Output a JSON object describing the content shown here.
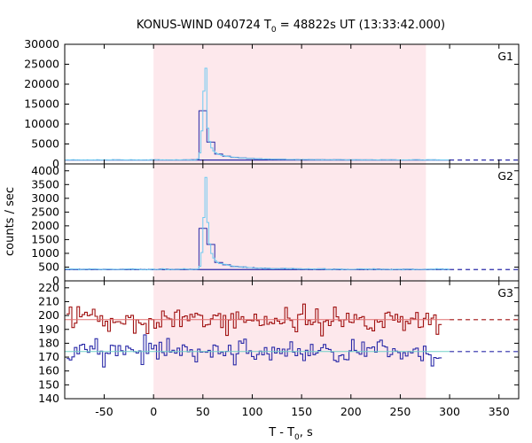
{
  "chart_data": {
    "type": "line",
    "title_main": "KONUS-WIND 040724 T",
    "title_sub": "0",
    "title_rest": " = 48822s UT (13:33:42.000)",
    "xlabel_main": "T - T",
    "xlabel_sub": "0",
    "xlabel_rest": ", s",
    "ylabel": "counts / sec",
    "xlim": [
      -90,
      370
    ],
    "xticks": [
      -50,
      0,
      50,
      100,
      150,
      200,
      250,
      300,
      350
    ],
    "shaded_region": [
      0,
      276
    ],
    "colors": {
      "shade": "#fde8ec",
      "light_blue": "#6ec9f0",
      "dark_blue": "#2a2aa8",
      "dark_red": "#a01010",
      "cyan_fit": "#70d0c8"
    },
    "panels": [
      {
        "label": "G1",
        "ylim": [
          0,
          30000
        ],
        "yticks": [
          0,
          5000,
          10000,
          15000,
          20000,
          25000,
          30000
        ],
        "background_level": 1000,
        "peak": {
          "x": 52,
          "y": 24000
        }
      },
      {
        "label": "G2",
        "ylim": [
          0,
          4250
        ],
        "yticks": [
          0,
          500,
          1000,
          1500,
          2000,
          2500,
          3000,
          3500,
          4000
        ],
        "background_level": 420,
        "peak": {
          "x": 53,
          "y": 4000
        }
      },
      {
        "label": "G3",
        "ylim": [
          140,
          225
        ],
        "yticks": [
          140,
          150,
          160,
          170,
          180,
          190,
          200,
          210,
          220
        ],
        "series": [
          {
            "color": "dark_red",
            "mean": 197
          },
          {
            "color": "dark_blue",
            "mean": 174
          }
        ]
      }
    ]
  }
}
